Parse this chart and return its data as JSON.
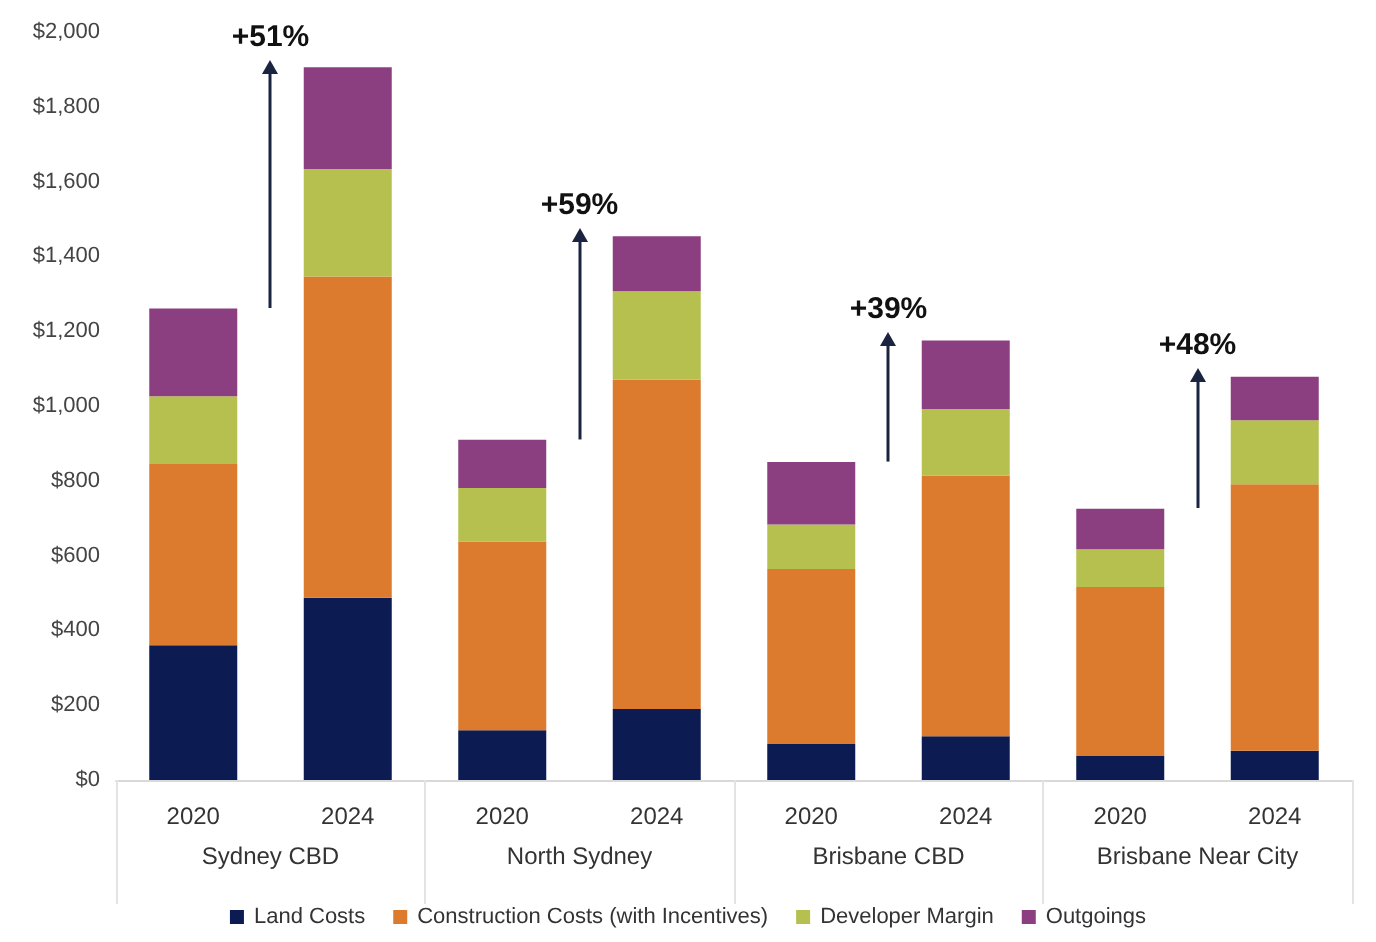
{
  "chart_data": {
    "type": "bar",
    "stacked": true,
    "categories": [
      "2020",
      "2024",
      "2020",
      "2024",
      "2020",
      "2024",
      "2020",
      "2024"
    ],
    "series": [
      {
        "name": "Land Costs",
        "color": "#0c1b52",
        "values": [
          360,
          487,
          133,
          190,
          96,
          117,
          64,
          78
        ]
      },
      {
        "name": "Construction Costs (with Incentives)",
        "color": "#dc7b2e",
        "values": [
          485,
          859,
          505,
          880,
          468,
          697,
          452,
          713
        ]
      },
      {
        "name": "Developer Margin",
        "color": "#b5c04e",
        "values": [
          181,
          288,
          143,
          237,
          119,
          178,
          101,
          171
        ]
      },
      {
        "name": "Outgoings",
        "color": "#8c3f80",
        "values": [
          235,
          272,
          129,
          147,
          167,
          183,
          108,
          116
        ]
      }
    ],
    "ylim": [
      0,
      2000
    ],
    "yticks": [
      {
        "value": 0,
        "label": "$0"
      },
      {
        "value": 200,
        "label": "$200"
      },
      {
        "value": 400,
        "label": "$400"
      },
      {
        "value": 600,
        "label": "$600"
      },
      {
        "value": 800,
        "label": "$800"
      },
      {
        "value": 1000,
        "label": "$1,000"
      },
      {
        "value": 1200,
        "label": "$1,200"
      },
      {
        "value": 1400,
        "label": "$1,400"
      },
      {
        "value": 1600,
        "label": "$1,600"
      },
      {
        "value": 1800,
        "label": "$1,800"
      },
      {
        "value": 2000,
        "label": "$2,000"
      }
    ],
    "grid": false,
    "legend": "bottom",
    "annotations": [
      "+51%",
      "+59%",
      "+39%",
      "+48%",
      "Sydney CBD",
      "North Sydney",
      "Brisbane CBD",
      "Brisbane Near City"
    ]
  }
}
